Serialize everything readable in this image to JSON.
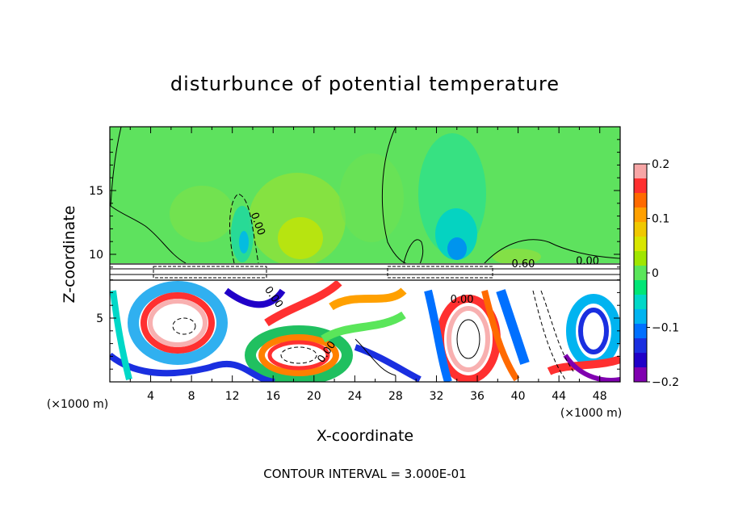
{
  "chart_data": {
    "type": "heatmap",
    "title": "disturbunce of potential temperature",
    "xlabel": "X-coordinate",
    "ylabel": "Z-coordinate",
    "x_unit_left": "(×1000 m)",
    "x_unit_right": "(×1000 m)",
    "xlim": [
      0,
      50
    ],
    "ylim": [
      0,
      20
    ],
    "x_ticks": [
      4,
      8,
      12,
      16,
      20,
      24,
      28,
      32,
      36,
      40,
      44,
      48
    ],
    "x_tick_labels": [
      "4",
      "8",
      "12",
      "16",
      "20",
      "24",
      "28",
      "32",
      "36",
      "40",
      "44",
      "48"
    ],
    "y_ticks": [
      5,
      10,
      15
    ],
    "y_tick_labels": [
      "5",
      "10",
      "15"
    ],
    "footer": "CONTOUR INTERVAL = 3.000E-01",
    "colorbar": {
      "range": [
        -0.2,
        0.2
      ],
      "tick_values": [
        0.2,
        0.1,
        0,
        -0.1,
        -0.2
      ],
      "tick_labels": [
        "0.2",
        "0.1",
        "0",
        "−0.1",
        "−0.2"
      ],
      "colors": [
        "#f7a6a6",
        "#ff3030",
        "#ff6a00",
        "#ffa000",
        "#f0c800",
        "#d8e600",
        "#a0e600",
        "#5ae65a",
        "#00e676",
        "#00d8c8",
        "#00b4f0",
        "#0070ff",
        "#1a2fe0",
        "#2000c8",
        "#8000b0"
      ]
    },
    "contour_labels": [
      {
        "text": "0.00",
        "x": 14.2,
        "y": 12.3,
        "rotate": 70
      },
      {
        "text": "0.60",
        "x": 40.5,
        "y": 9.0,
        "rotate": 0
      },
      {
        "text": "0.00",
        "x": 46.8,
        "y": 9.2,
        "rotate": 0
      },
      {
        "text": "0.00",
        "x": 34.5,
        "y": 6.2,
        "rotate": 0
      },
      {
        "text": "0.00",
        "x": 15.8,
        "y": 6.5,
        "rotate": 55
      },
      {
        "text": "0.00",
        "x": 21.5,
        "y": 2.2,
        "rotate": -55
      }
    ]
  }
}
